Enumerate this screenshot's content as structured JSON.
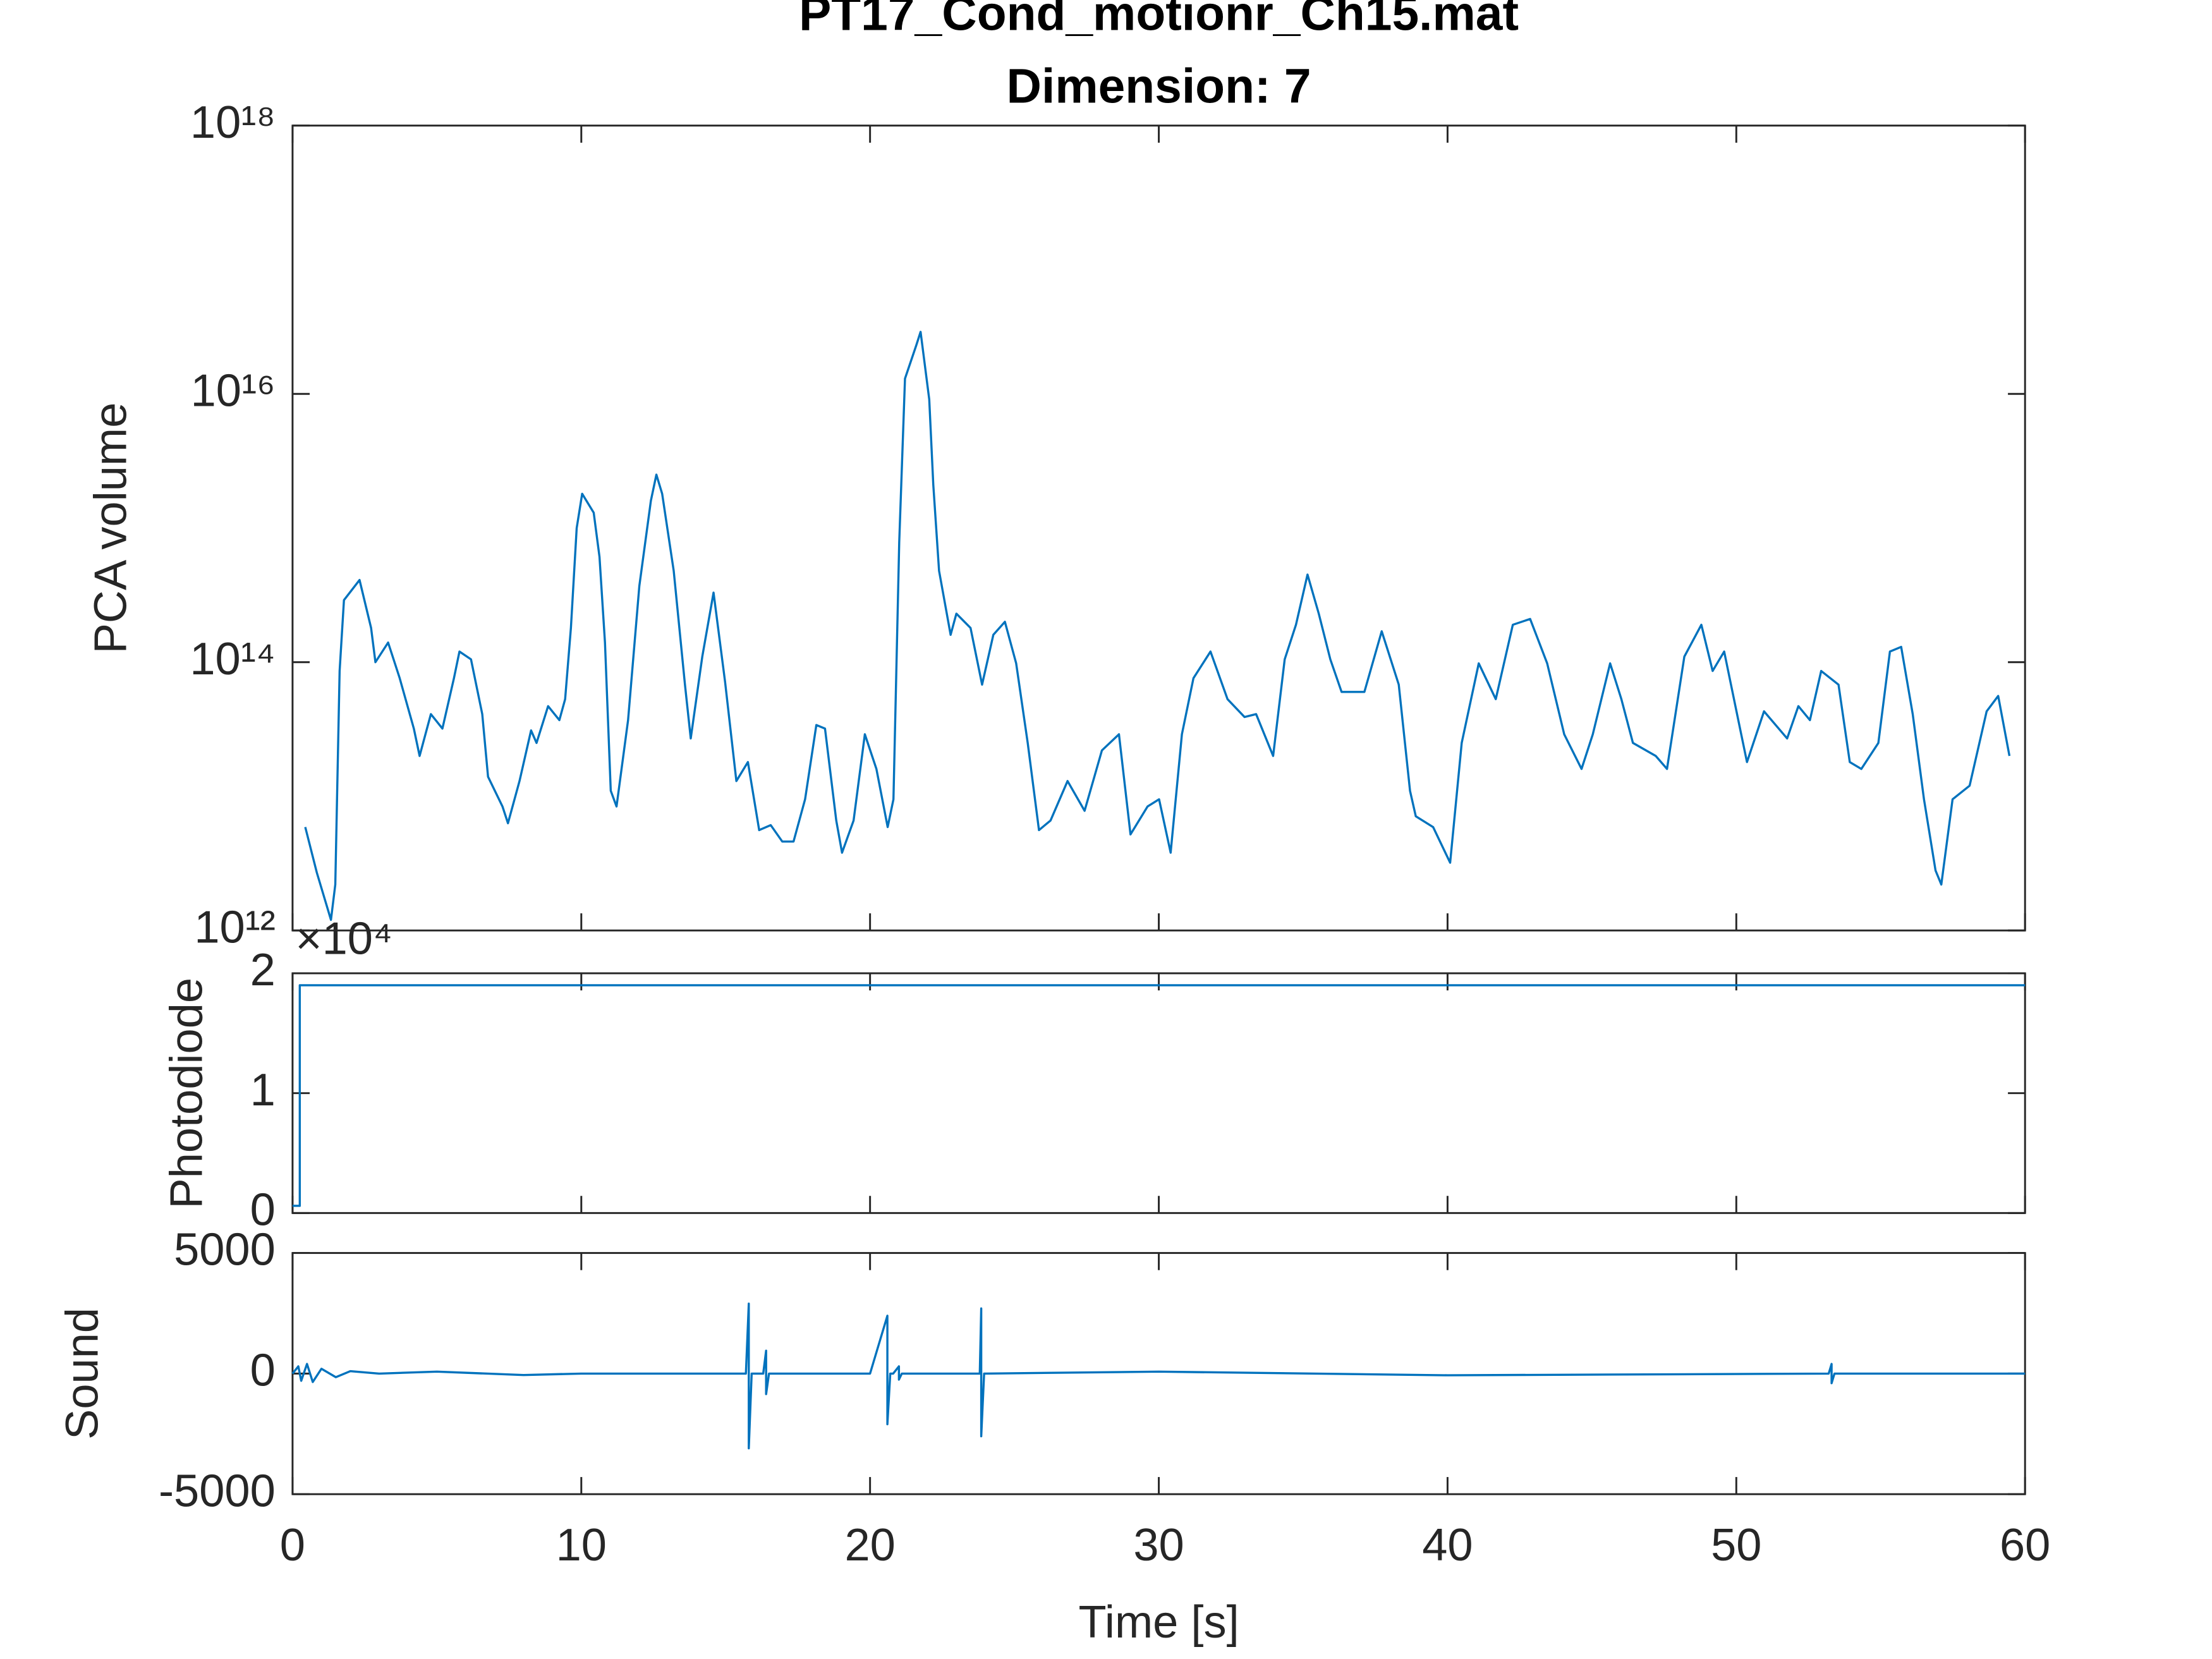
{
  "chart_data": [
    {
      "type": "line",
      "title": "PT17_Cond_motionr_Ch15.mat",
      "subtitle": "Dimension: 7",
      "ylabel": "PCA volume",
      "color": "#0072bd",
      "log_y": true,
      "xlim": [
        0,
        60
      ],
      "xticks": [
        0,
        10,
        20,
        30,
        40,
        50,
        60
      ],
      "xtick_labels": false,
      "ylim": [
        1000000000000.0,
        1e+18
      ],
      "yticks": [
        {
          "value": 1000000000000.0,
          "label": "10¹²"
        },
        {
          "value": 100000000000000.0,
          "label": "10¹⁴"
        },
        {
          "value": 1e+16,
          "label": "10¹⁶"
        },
        {
          "value": 1e+18,
          "label": "10¹⁸"
        }
      ],
      "x": [
        0.44,
        0.84,
        1.33,
        1.48,
        1.63,
        1.78,
        2.32,
        2.72,
        2.87,
        3.31,
        3.71,
        4.2,
        4.4,
        4.79,
        5.19,
        5.59,
        5.78,
        6.18,
        6.57,
        6.77,
        7.27,
        7.46,
        7.86,
        8.26,
        8.45,
        8.85,
        9.24,
        9.44,
        9.64,
        9.84,
        10.03,
        10.43,
        10.63,
        10.82,
        11.02,
        11.22,
        11.62,
        12.01,
        12.41,
        12.6,
        12.8,
        13.2,
        13.59,
        13.79,
        14.19,
        14.58,
        14.98,
        15.37,
        15.77,
        16.16,
        16.56,
        16.96,
        17.35,
        17.75,
        18.14,
        18.44,
        18.83,
        19.03,
        19.43,
        19.82,
        20.22,
        20.61,
        20.81,
        21.01,
        21.21,
        21.6,
        21.75,
        22.05,
        22.19,
        22.39,
        22.79,
        22.99,
        23.48,
        23.88,
        24.27,
        24.67,
        25.06,
        25.46,
        25.85,
        26.25,
        26.84,
        27.43,
        28.03,
        28.62,
        29.02,
        29.61,
        30.01,
        30.41,
        30.8,
        31.2,
        31.79,
        32.38,
        32.97,
        33.37,
        33.96,
        34.36,
        34.75,
        35.15,
        35.54,
        35.94,
        36.33,
        37.12,
        37.72,
        38.31,
        38.7,
        38.9,
        39.5,
        40.09,
        40.49,
        41.08,
        41.67,
        42.26,
        42.86,
        43.45,
        44.04,
        44.64,
        45.03,
        45.63,
        46.02,
        46.42,
        47.21,
        47.6,
        48.2,
        48.79,
        49.18,
        49.58,
        50.17,
        50.37,
        50.96,
        51.76,
        52.15,
        52.55,
        52.94,
        53.54,
        53.93,
        54.33,
        54.92,
        55.32,
        55.71,
        56.11,
        56.5,
        56.9,
        57.1,
        57.49,
        58.08,
        58.67,
        59.07,
        59.46
      ],
      "values": [
        5900000000000.0,
        2700000000000.0,
        1200000000000.0,
        2200000000000.0,
        86000000000000.0,
        290000000000000.0,
        410000000000000.0,
        180000000000000.0,
        100000000000000.0,
        140000000000000.0,
        76000000000000.0,
        32000000000000.0,
        20000000000000.0,
        41000000000000.0,
        32000000000000.0,
        76000000000000.0,
        120000000000000.0,
        105000000000000.0,
        41000000000000.0,
        14000000000000.0,
        8400000000000.0,
        6300000000000.0,
        13000000000000.0,
        31000000000000.0,
        25000000000000.0,
        47000000000000.0,
        37000000000000.0,
        53000000000000.0,
        180000000000000.0,
        1000000000000000.0,
        1800000000000000.0,
        1300000000000000.0,
        610000000000000.0,
        140000000000000.0,
        11000000000000.0,
        8400000000000.0,
        37000000000000.0,
        370000000000000.0,
        1600000000000000.0,
        2500000000000000.0,
        1800000000000000.0,
        480000000000000.0,
        68000000000000.0,
        27000000000000.0,
        110000000000000.0,
        330000000000000.0,
        71000000000000.0,
        13000000000000.0,
        18000000000000.0,
        5600000000000.0,
        6100000000000.0,
        4600000000000.0,
        4600000000000.0,
        9500000000000.0,
        34000000000000.0,
        32000000000000.0,
        6600000000000.0,
        3800000000000.0,
        6600000000000.0,
        29000000000000.0,
        16000000000000.0,
        5900000000000.0,
        9500000000000.0,
        780000000000000.0,
        1.3e+16,
        2.3e+16,
        2.9e+16,
        9100000000000000.0,
        2100000000000000.0,
        480000000000000.0,
        160000000000000.0,
        230000000000000.0,
        180000000000000.0,
        68000000000000.0,
        160000000000000.0,
        200000000000000.0,
        98000000000000.0,
        25000000000000.0,
        5600000000000.0,
        6600000000000.0,
        13000000000000.0,
        7800000000000.0,
        22000000000000.0,
        29000000000000.0,
        5200000000000.0,
        8400000000000.0,
        9500000000000.0,
        3800000000000.0,
        29000000000000.0,
        76000000000000.0,
        120000000000000.0,
        53000000000000.0,
        39000000000000.0,
        41000000000000.0,
        20000000000000.0,
        105000000000000.0,
        190000000000000.0,
        450000000000000.0,
        230000000000000.0,
        105000000000000.0,
        60000000000000.0,
        60000000000000.0,
        170000000000000.0,
        68000000000000.0,
        11000000000000.0,
        7100000000000.0,
        5900000000000.0,
        3200000000000.0,
        25000000000000.0,
        98000000000000.0,
        53000000000000.0,
        190000000000000.0,
        210000000000000.0,
        98000000000000.0,
        29000000000000.0,
        16000000000000.0,
        29000000000000.0,
        98000000000000.0,
        53000000000000.0,
        25000000000000.0,
        20000000000000.0,
        16000000000000.0,
        110000000000000.0,
        190000000000000.0,
        86000000000000.0,
        120000000000000.0,
        29000000000000.0,
        18000000000000.0,
        43000000000000.0,
        27000000000000.0,
        47000000000000.0,
        37000000000000.0,
        86000000000000.0,
        68000000000000.0,
        18000000000000.0,
        16000000000000.0,
        25000000000000.0,
        120000000000000.0,
        130000000000000.0,
        41000000000000.0,
        9500000000000.0,
        2800000000000.0,
        2200000000000.0,
        9500000000000.0,
        12000000000000.0,
        43000000000000.0,
        56000000000000.0,
        20000000000000.0
      ]
    },
    {
      "type": "line",
      "ylabel": "Photodiode",
      "color": "#0072bd",
      "y_exponent_label": "×10⁴",
      "xlim": [
        0,
        60
      ],
      "xticks": [
        0,
        10,
        20,
        30,
        40,
        50,
        60
      ],
      "xtick_labels": false,
      "ylim": [
        0,
        20000
      ],
      "yticks": [
        {
          "value": 0,
          "label": "0"
        },
        {
          "value": 10000,
          "label": "1"
        },
        {
          "value": 20000,
          "label": "2"
        }
      ],
      "x": [
        0,
        0.25,
        0.25,
        60
      ],
      "values": [
        600,
        600,
        19000,
        19000
      ]
    },
    {
      "type": "line",
      "ylabel": "Sound",
      "xlabel": "Time [s]",
      "color": "#0072bd",
      "xlim": [
        0,
        60
      ],
      "xticks": [
        0,
        10,
        20,
        30,
        40,
        50,
        60
      ],
      "xtick_labels": true,
      "ylim": [
        -5000,
        5000
      ],
      "yticks": [
        -5000,
        0,
        5000
      ],
      "x": [
        0,
        0.2,
        0.3,
        0.5,
        0.7,
        1,
        1.5,
        2,
        3,
        5,
        8,
        10,
        15.7,
        15.8,
        15.8,
        15.9,
        16.3,
        16.4,
        16.4,
        16.5,
        20,
        20.6,
        20.6,
        20.7,
        20.8,
        21.0,
        21.0,
        21.1,
        23.8,
        23.85,
        23.85,
        23.95,
        30,
        40,
        53.2,
        53.3,
        53.3,
        53.4,
        60
      ],
      "values": [
        0,
        300,
        -300,
        400,
        -350,
        200,
        -150,
        100,
        0,
        80,
        -60,
        0,
        0,
        2900,
        -3100,
        0,
        0,
        950,
        -850,
        0,
        0,
        2400,
        -2100,
        0,
        0,
        300,
        -250,
        0,
        0,
        2700,
        -2600,
        0,
        80,
        -70,
        0,
        400,
        -400,
        0,
        0
      ]
    }
  ]
}
